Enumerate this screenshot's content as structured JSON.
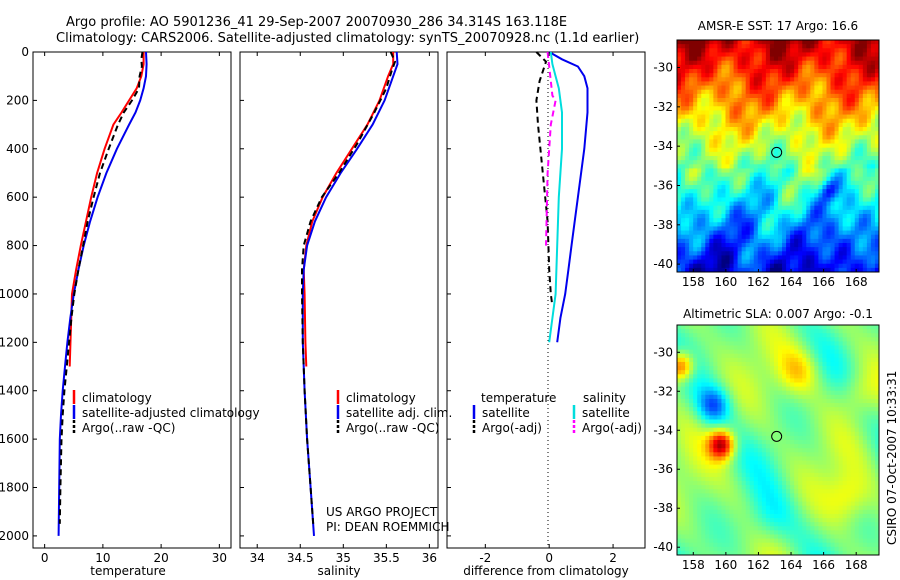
{
  "figure": {
    "title_line1": "Argo profile: AO 5901236_41 29-Sep-2007 20070930_286 34.314S 163.118E",
    "title_line2": "Climatology: CARS2006. Satellite-adjusted climatology: synTS_20070928.nc (1.1d earlier)",
    "project_line1": "US ARGO PROJECT",
    "project_line2": "PI: DEAN ROEMMICH",
    "stamp": "CSIRO 07-Oct-2007 10:33:31"
  },
  "colors": {
    "climatology": "#ff0000",
    "satellite": "#0000ee",
    "argo": "#000000",
    "salinity_satellite": "#00dddd",
    "salinity_argo": "#ff00ff"
  },
  "chart_data": [
    {
      "type": "line",
      "id": "temperature",
      "xlabel": "temperature",
      "ylabel": "",
      "xlim": [
        -2,
        32
      ],
      "ylim": [
        2050,
        0
      ],
      "xticks": [
        "0",
        "10",
        "20",
        "30"
      ],
      "xtick_values": [
        0,
        10,
        20,
        30
      ],
      "yticks": [
        "0",
        "200",
        "400",
        "600",
        "800",
        "1000",
        "1200",
        "1400",
        "1600",
        "1800",
        "2000"
      ],
      "ytick_values": [
        0,
        200,
        400,
        600,
        800,
        1000,
        1200,
        1400,
        1600,
        1800,
        2000
      ],
      "legend": [
        "climatology",
        "satellite-adjusted climatology",
        "Argo(..raw -QC)"
      ],
      "series": [
        {
          "name": "climatology",
          "color": "#ff0000",
          "dash": "",
          "x": [
            17.0,
            17.0,
            16.6,
            15.8,
            14.5,
            13.2,
            11.8,
            10.3,
            9.0,
            8.0,
            7.1,
            6.2,
            5.4,
            4.7,
            4.3
          ],
          "y": [
            0,
            50,
            100,
            150,
            200,
            250,
            300,
            400,
            500,
            600,
            700,
            800,
            900,
            1000,
            1300
          ]
        },
        {
          "name": "satellite-adjusted climatology",
          "color": "#0000ee",
          "dash": "",
          "x": [
            17.4,
            17.5,
            17.4,
            17.0,
            16.4,
            15.6,
            14.5,
            12.4,
            10.6,
            9.1,
            7.8,
            6.7,
            5.8,
            5.0,
            4.4,
            3.9,
            3.5,
            3.1,
            2.8,
            2.6,
            2.5,
            2.4
          ],
          "y": [
            0,
            50,
            100,
            150,
            200,
            250,
            300,
            400,
            500,
            600,
            700,
            800,
            900,
            1000,
            1100,
            1200,
            1300,
            1400,
            1500,
            1600,
            1800,
            2000
          ]
        },
        {
          "name": "Argo(..raw -QC)",
          "color": "#000000",
          "dash": "6,4",
          "x": [
            16.8,
            16.6,
            16.7,
            16.3,
            16.2,
            15.0,
            13.6,
            12.6,
            11.0,
            9.5,
            8.4,
            7.4,
            6.6,
            5.8,
            5.1,
            4.6,
            4.2,
            3.8,
            3.4,
            3.1,
            2.9,
            2.7,
            2.6
          ],
          "y": [
            0,
            30,
            60,
            100,
            150,
            200,
            250,
            300,
            400,
            500,
            600,
            700,
            800,
            900,
            1000,
            1100,
            1200,
            1300,
            1400,
            1500,
            1600,
            1800,
            1950
          ]
        }
      ]
    },
    {
      "type": "line",
      "id": "salinity",
      "xlabel": "salinity",
      "xlim": [
        33.8,
        36.1
      ],
      "ylim": [
        2050,
        0
      ],
      "xticks": [
        "34",
        "34.5",
        "35",
        "35.5",
        "36"
      ],
      "xtick_values": [
        34,
        34.5,
        35,
        35.5,
        36
      ],
      "legend": [
        "climatology",
        "satellite adj. clim.",
        "Argo(..raw -QC)"
      ],
      "series": [
        {
          "name": "climatology",
          "color": "#ff0000",
          "dash": "",
          "x": [
            35.58,
            35.58,
            35.52,
            35.42,
            35.28,
            35.1,
            34.92,
            34.76,
            34.64,
            34.57,
            34.54,
            34.55,
            34.56,
            34.57
          ],
          "y": [
            0,
            50,
            100,
            200,
            300,
            400,
            500,
            600,
            700,
            800,
            900,
            1000,
            1200,
            1300
          ]
        },
        {
          "name": "satellite adj. clim.",
          "color": "#0000ee",
          "dash": "",
          "x": [
            35.62,
            35.63,
            35.58,
            35.48,
            35.34,
            35.16,
            34.97,
            34.8,
            34.67,
            34.58,
            34.54,
            34.53,
            34.53,
            34.55,
            34.58,
            34.62,
            34.66
          ],
          "y": [
            0,
            50,
            100,
            200,
            300,
            400,
            500,
            600,
            700,
            800,
            900,
            1000,
            1200,
            1400,
            1600,
            1800,
            2000
          ]
        },
        {
          "name": "Argo(..raw -QC)",
          "color": "#000000",
          "dash": "6,4",
          "x": [
            35.55,
            35.6,
            35.56,
            35.5,
            35.36,
            35.16,
            34.95,
            34.75,
            34.62,
            34.54,
            34.52,
            34.52,
            34.53,
            34.55,
            34.58,
            34.62,
            34.65
          ],
          "y": [
            0,
            40,
            80,
            150,
            250,
            380,
            500,
            600,
            700,
            800,
            900,
            1000,
            1200,
            1400,
            1600,
            1800,
            1950
          ]
        }
      ]
    },
    {
      "type": "line",
      "id": "difference",
      "xlabel": "difference from climatology",
      "xlim": [
        -3.2,
        3.0
      ],
      "ylim": [
        2050,
        0
      ],
      "xticks": [
        "-2",
        "0",
        "2"
      ],
      "xtick_values": [
        -2,
        0,
        2
      ],
      "legend_groups": [
        {
          "title": "temperature",
          "entries": [
            "satellite",
            "Argo(-adj)"
          ]
        },
        {
          "title": "salinity",
          "entries": [
            "satellite",
            "Argo(-adj)"
          ]
        }
      ],
      "series": [
        {
          "name": "temperature satellite",
          "color": "#0000ee",
          "dash": "",
          "x": [
            0.0,
            0.4,
            0.9,
            1.1,
            1.2,
            1.2,
            1.1,
            1.0,
            0.9,
            0.8,
            0.7,
            0.6,
            0.5,
            0.35,
            0.25
          ],
          "y": [
            0,
            30,
            60,
            100,
            150,
            250,
            400,
            500,
            600,
            700,
            800,
            900,
            1000,
            1100,
            1200
          ]
        },
        {
          "name": "temperature Argo(-adj)",
          "color": "#000000",
          "dash": "6,4",
          "x": [
            -0.4,
            -0.1,
            -0.2,
            -0.3,
            -0.35,
            -0.4,
            -0.35,
            -0.2,
            -0.05,
            0.0,
            0.05,
            0.1
          ],
          "y": [
            0,
            40,
            80,
            120,
            160,
            200,
            300,
            500,
            700,
            900,
            1000,
            1050
          ]
        },
        {
          "name": "salinity satellite",
          "color": "#00dddd",
          "dash": "",
          "x": [
            0.05,
            0.1,
            0.2,
            0.3,
            0.4,
            0.4,
            0.35,
            0.3,
            0.25,
            0.2,
            0.1,
            0.0
          ],
          "y": [
            0,
            50,
            100,
            150,
            250,
            400,
            500,
            600,
            800,
            1000,
            1100,
            1200
          ]
        },
        {
          "name": "salinity Argo(-adj)",
          "color": "#ff00ff",
          "dash": "6,4",
          "x": [
            -0.05,
            0.0,
            0.05,
            0.1,
            0.2,
            0.05,
            -0.05,
            -0.1
          ],
          "y": [
            0,
            60,
            120,
            180,
            200,
            300,
            500,
            800
          ]
        }
      ]
    },
    {
      "type": "heatmap",
      "id": "sst_map",
      "title": "AMSR-E SST: 17 Argo: 16.6",
      "xlim": [
        157,
        169.4
      ],
      "ylim": [
        -40.4,
        -28.6
      ],
      "xticks": [
        "158",
        "160",
        "162",
        "164",
        "166",
        "168"
      ],
      "xtick_values": [
        158,
        160,
        162,
        164,
        166,
        168
      ],
      "yticks": [
        "-30",
        "-32",
        "-34",
        "-36",
        "-38",
        "-40"
      ],
      "ytick_values": [
        -30,
        -32,
        -34,
        -36,
        -38,
        -40
      ],
      "marker": {
        "lon": 163.118,
        "lat": -34.314
      }
    },
    {
      "type": "heatmap",
      "id": "sla_map",
      "title": "Altimetric SLA: 0.007 Argo: -0.1",
      "xlim": [
        157,
        169.4
      ],
      "ylim": [
        -40.4,
        -28.6
      ],
      "xticks": [
        "158",
        "160",
        "162",
        "164",
        "166",
        "168"
      ],
      "xtick_values": [
        158,
        160,
        162,
        164,
        166,
        168
      ],
      "yticks": [
        "-30",
        "-32",
        "-34",
        "-36",
        "-38",
        "-40"
      ],
      "ytick_values": [
        -30,
        -32,
        -34,
        -36,
        -38,
        -40
      ],
      "marker": {
        "lon": 163.118,
        "lat": -34.314
      }
    }
  ]
}
